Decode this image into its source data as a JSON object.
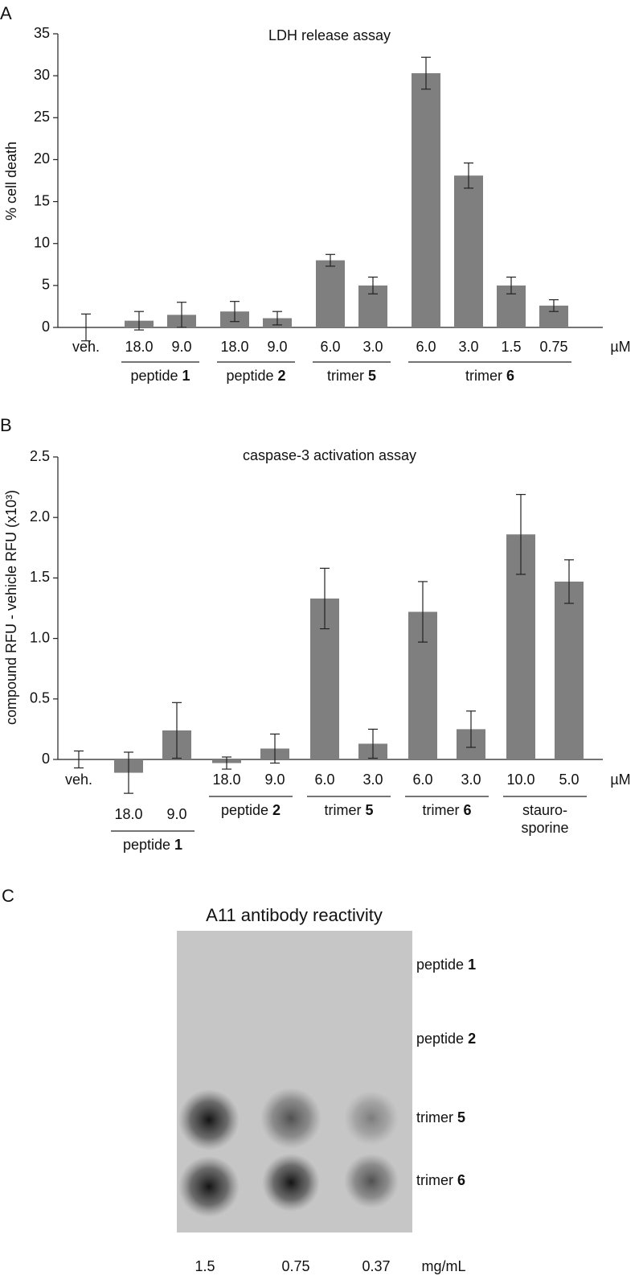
{
  "panels": [
    "A",
    "B",
    "C"
  ],
  "chart_data": [
    {
      "type": "bar",
      "title": "LDH release assay",
      "y_label": "% cell death",
      "unit": "µM",
      "color": "#7f7f7f",
      "ylim": [
        0,
        35
      ],
      "yticks": [
        0,
        5,
        10,
        15,
        20,
        25,
        30,
        35
      ],
      "groups": [
        {
          "label": null,
          "categories": [
            "veh."
          ],
          "values": [
            0
          ],
          "errors": [
            1.6
          ]
        },
        {
          "label": "peptide",
          "label_bold": "1",
          "categories": [
            "18.0",
            "9.0"
          ],
          "values": [
            0.8,
            1.5
          ],
          "errors": [
            1.1,
            1.5
          ]
        },
        {
          "label": "peptide",
          "label_bold": "2",
          "categories": [
            "18.0",
            "9.0"
          ],
          "values": [
            1.9,
            1.1
          ],
          "errors": [
            1.2,
            0.8
          ]
        },
        {
          "label": "trimer",
          "label_bold": "5",
          "categories": [
            "6.0",
            "3.0"
          ],
          "values": [
            8.0,
            5.0
          ],
          "errors": [
            0.7,
            1.0
          ]
        },
        {
          "label": "trimer",
          "label_bold": "6",
          "categories": [
            "6.0",
            "3.0",
            "1.5",
            "0.75"
          ],
          "values": [
            30.3,
            18.1,
            5.0,
            2.6
          ],
          "errors": [
            1.9,
            1.5,
            1.0,
            0.7
          ]
        }
      ]
    },
    {
      "type": "bar",
      "title": "caspase-3 activation assay",
      "y_label": "compound RFU - vehicle RFU (x10³)",
      "unit": "µM",
      "color": "#7f7f7f",
      "ylim": [
        0,
        2.5
      ],
      "yticks": [
        0,
        0.5,
        {
          "value": 1,
          "label": "1.0"
        },
        1.5,
        {
          "value": 2,
          "label": "2.0"
        },
        2.5
      ],
      "groups": [
        {
          "label": null,
          "categories": [
            "veh."
          ],
          "values": [
            0
          ],
          "errors": [
            0.07
          ]
        },
        {
          "label": "peptide",
          "label_bold": "1",
          "categories": [
            "18.0",
            "9.0"
          ],
          "values": [
            -0.11,
            0.24
          ],
          "errors": [
            0.17,
            0.23
          ]
        },
        {
          "label": "peptide",
          "label_bold": "2",
          "categories": [
            "18.0",
            "9.0"
          ],
          "values": [
            -0.03,
            0.09
          ],
          "errors": [
            0.05,
            0.12
          ]
        },
        {
          "label": "trimer",
          "label_bold": "5",
          "categories": [
            "6.0",
            "3.0"
          ],
          "values": [
            1.33,
            0.13
          ],
          "errors": [
            0.25,
            0.12
          ]
        },
        {
          "label": "trimer",
          "label_bold": "6",
          "categories": [
            "6.0",
            "3.0"
          ],
          "values": [
            1.22,
            0.25
          ],
          "errors": [
            0.25,
            0.15
          ]
        },
        {
          "label": [
            "stauro-",
            "sporine"
          ],
          "categories": [
            "10.0",
            "5.0"
          ],
          "values": [
            1.86,
            1.47
          ],
          "errors": [
            0.33,
            0.18
          ]
        }
      ]
    }
  ],
  "blot": {
    "title": "A11 antibody reactivity",
    "rows": [
      {
        "label": "peptide",
        "label_bold": "1"
      },
      {
        "label": "peptide",
        "label_bold": "2"
      },
      {
        "label": "trimer",
        "label_bold": "5"
      },
      {
        "label": "trimer",
        "label_bold": "6"
      }
    ],
    "columns": [
      "1.5",
      "0.75",
      "0.37"
    ],
    "unit": "mg/mL"
  }
}
